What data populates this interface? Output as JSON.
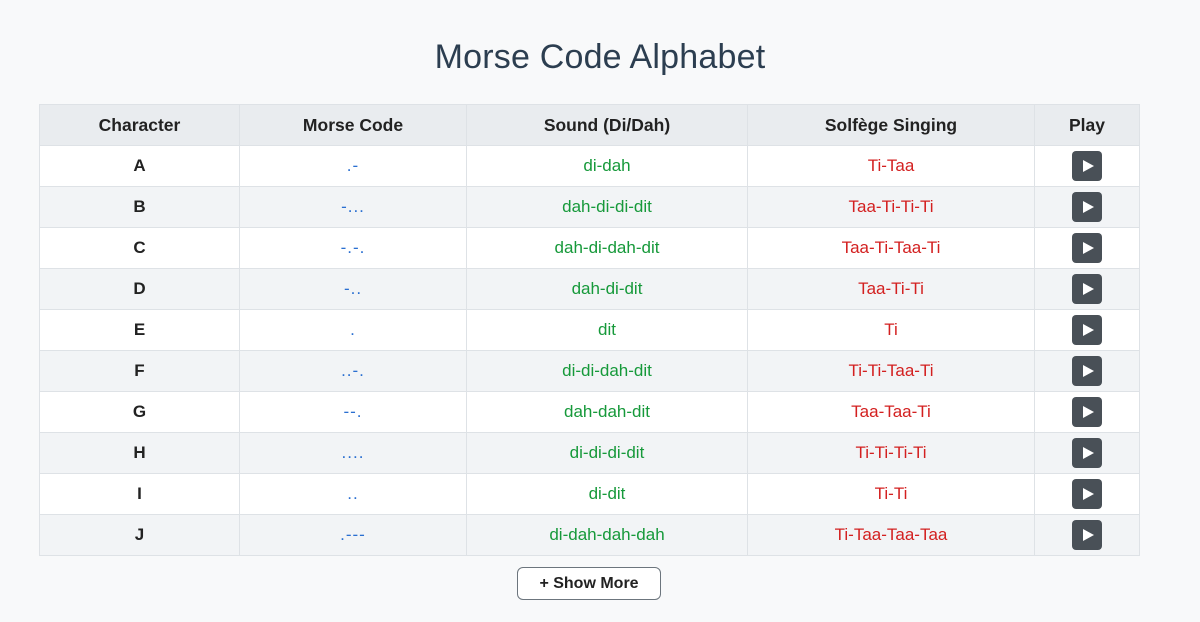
{
  "title": "Morse Code Alphabet",
  "table": {
    "headers": {
      "character": "Character",
      "morse": "Morse Code",
      "sound": "Sound (Di/Dah)",
      "solfege": "Solfège Singing",
      "play": "Play"
    },
    "rows": [
      {
        "character": "A",
        "morse": ".-",
        "sound": "di-dah",
        "solfege": "Ti-Taa"
      },
      {
        "character": "B",
        "morse": "-...",
        "sound": "dah-di-di-dit",
        "solfege": "Taa-Ti-Ti-Ti"
      },
      {
        "character": "C",
        "morse": "-.-.",
        "sound": "dah-di-dah-dit",
        "solfege": "Taa-Ti-Taa-Ti"
      },
      {
        "character": "D",
        "morse": "-..",
        "sound": "dah-di-dit",
        "solfege": "Taa-Ti-Ti"
      },
      {
        "character": "E",
        "morse": ".",
        "sound": "dit",
        "solfege": "Ti"
      },
      {
        "character": "F",
        "morse": "..-.",
        "sound": "di-di-dah-dit",
        "solfege": "Ti-Ti-Taa-Ti"
      },
      {
        "character": "G",
        "morse": "--.",
        "sound": "dah-dah-dit",
        "solfege": "Taa-Taa-Ti"
      },
      {
        "character": "H",
        "morse": "....",
        "sound": "di-di-di-dit",
        "solfege": "Ti-Ti-Ti-Ti"
      },
      {
        "character": "I",
        "morse": "..",
        "sound": "di-dit",
        "solfege": "Ti-Ti"
      },
      {
        "character": "J",
        "morse": ".---",
        "sound": "di-dah-dah-dah",
        "solfege": "Ti-Taa-Taa-Taa"
      }
    ],
    "play_icon": "play-icon"
  },
  "show_more_label": "+ Show More",
  "colors": {
    "title": "#2c3e50",
    "morse": "#2a6fd1",
    "sound": "#16993a",
    "solfege": "#d32020",
    "play_button": "#495057"
  }
}
